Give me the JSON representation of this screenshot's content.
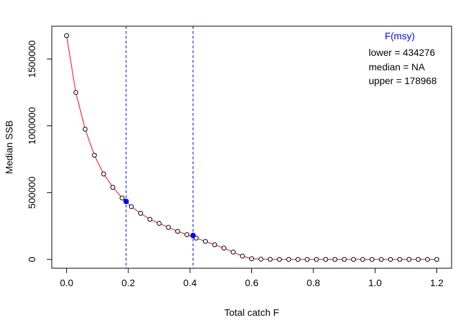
{
  "chart_data": {
    "type": "line",
    "xlabel": "Total catch F",
    "ylabel": "Median SSB",
    "xlim": [
      -0.048,
      1.248
    ],
    "ylim": [
      -66000,
      1746000
    ],
    "x_ticks": [
      0.0,
      0.2,
      0.4,
      0.6,
      0.8,
      1.0,
      1.2
    ],
    "x_tick_labels": [
      "0.0",
      "0.2",
      "0.4",
      "0.6",
      "0.8",
      "1.0",
      "1.2"
    ],
    "y_ticks": [
      0,
      500000,
      1000000,
      1500000
    ],
    "y_tick_labels": [
      "0",
      "500000",
      "1000000",
      "1500000"
    ],
    "series": [
      {
        "color": "#ff0000",
        "point_style": "open-circle",
        "x": [
          0.0,
          0.03,
          0.06,
          0.09,
          0.12,
          0.15,
          0.18,
          0.21,
          0.24,
          0.27,
          0.3,
          0.33,
          0.36,
          0.39,
          0.42,
          0.45,
          0.48,
          0.51,
          0.54,
          0.57,
          0.6,
          0.63,
          0.66,
          0.69,
          0.72,
          0.75,
          0.78,
          0.81,
          0.84,
          0.87,
          0.9,
          0.93,
          0.96,
          0.99,
          1.02,
          1.05,
          1.08,
          1.11,
          1.14,
          1.17,
          1.2
        ],
        "y": [
          1675000,
          1250000,
          975000,
          780000,
          640000,
          540000,
          460000,
          395000,
          345000,
          300000,
          270000,
          240000,
          210000,
          185000,
          160000,
          135000,
          110000,
          85000,
          55000,
          25000,
          5000,
          2000,
          1000,
          0,
          0,
          0,
          0,
          0,
          0,
          0,
          0,
          0,
          0,
          0,
          0,
          0,
          0,
          0,
          0,
          0,
          0
        ]
      }
    ],
    "highlight_points": [
      {
        "x": 0.193,
        "y": 434276,
        "color": "#0000ff"
      },
      {
        "x": 0.41,
        "y": 178968,
        "color": "#0000ff"
      }
    ],
    "vlines": [
      {
        "x": 0.193,
        "color": "#0000ff",
        "style": "dashed"
      },
      {
        "x": 0.41,
        "color": "#0000ff",
        "style": "dashed"
      }
    ],
    "legend": {
      "title": "F(msy)",
      "title_color": "#0000ff",
      "lines": [
        "lower = 434276",
        "median = NA",
        "upper = 178968"
      ],
      "position": "top-right"
    }
  }
}
